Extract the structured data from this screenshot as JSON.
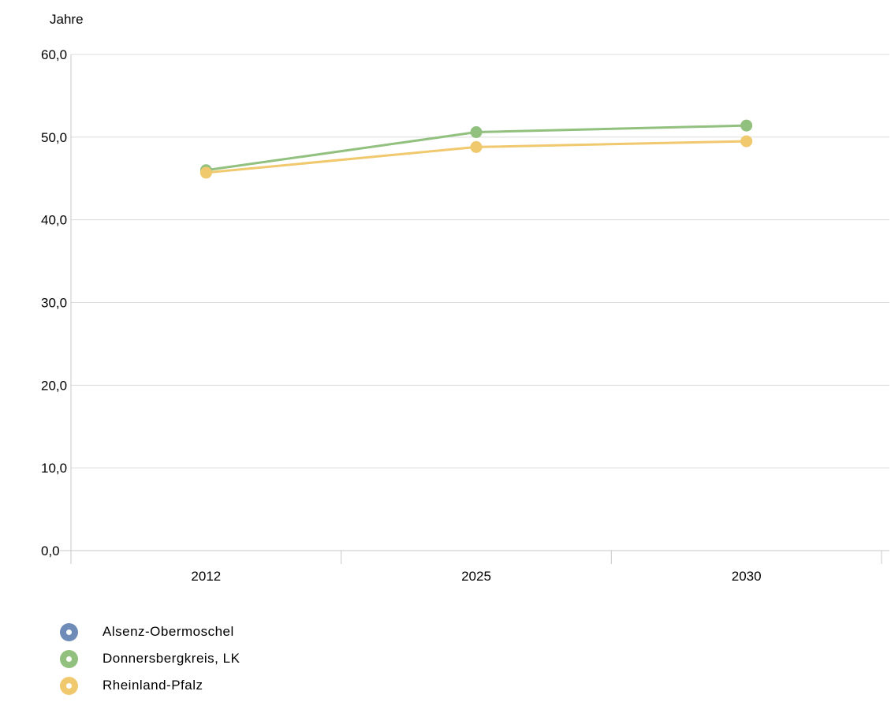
{
  "chart_data": {
    "type": "line",
    "ylabel": "Jahre",
    "categories": [
      "2012",
      "2025",
      "2030"
    ],
    "ylim": [
      0,
      60
    ],
    "y_ticks": [
      "0,0",
      "10,0",
      "20,0",
      "30,0",
      "40,0",
      "50,0",
      "60,0"
    ],
    "grid": true,
    "legend_position": "bottom-left",
    "series": [
      {
        "name": "Alsenz-Obermoschel",
        "color": "#6f8cb8",
        "values": [
          null,
          null,
          null
        ]
      },
      {
        "name": "Donnersbergkreis, LK",
        "color": "#92c07e",
        "values": [
          46.0,
          50.6,
          51.4
        ]
      },
      {
        "name": "Rheinland-Pfalz",
        "color": "#f0c96e",
        "values": [
          45.7,
          48.8,
          49.5
        ]
      }
    ]
  }
}
